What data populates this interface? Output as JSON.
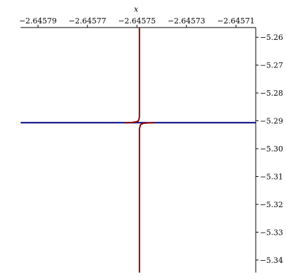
{
  "chart_data": {
    "type": "line",
    "title": "",
    "xlabel": "x",
    "ylabel": "",
    "x_axis_position": "top",
    "y_axis_position": "right",
    "xlim": [
      -2.645797,
      -2.645702
    ],
    "ylim": [
      -5.3445,
      -5.2565
    ],
    "x_ticks": [
      {
        "value": -2.64579,
        "label": "−2.64579"
      },
      {
        "value": -2.64577,
        "label": "−2.64577"
      },
      {
        "value": -2.64575,
        "label": "−2.64575"
      },
      {
        "value": -2.64573,
        "label": "−2.64573"
      },
      {
        "value": -2.64571,
        "label": "−2.64571"
      }
    ],
    "y_ticks": [
      {
        "value": -5.26,
        "label": "−5.26"
      },
      {
        "value": -5.27,
        "label": "−5.27"
      },
      {
        "value": -5.28,
        "label": "−5.28"
      },
      {
        "value": -5.29,
        "label": "−5.29"
      },
      {
        "value": -5.3,
        "label": "−5.30"
      },
      {
        "value": -5.31,
        "label": "−5.31"
      },
      {
        "value": -5.32,
        "label": "−5.32"
      },
      {
        "value": -5.33,
        "label": "−5.33"
      },
      {
        "value": -5.34,
        "label": "−5.34"
      }
    ],
    "grid": false,
    "series": [
      {
        "color": "#000080",
        "points": [
          [
            -2.645797,
            -5.29067
          ],
          [
            -2.645702,
            -5.29067
          ]
        ]
      },
      {
        "color": "#8b0000",
        "points": [
          [
            -2.645749,
            -5.2565
          ],
          [
            -2.645749,
            -5.2885
          ],
          [
            -2.6457492,
            -5.2895
          ],
          [
            -2.6457495,
            -5.2901
          ],
          [
            -2.6457505,
            -5.2904
          ],
          [
            -2.6457525,
            -5.29065
          ],
          [
            -2.645755,
            -5.2907
          ]
        ]
      },
      {
        "color": "#8b0000",
        "points": [
          [
            -2.645743,
            -5.2907
          ],
          [
            -2.6457455,
            -5.29075
          ],
          [
            -2.6457475,
            -5.2909
          ],
          [
            -2.6457485,
            -5.2913
          ],
          [
            -2.645749,
            -5.2928
          ],
          [
            -2.645749,
            -5.3445
          ]
        ]
      }
    ]
  }
}
